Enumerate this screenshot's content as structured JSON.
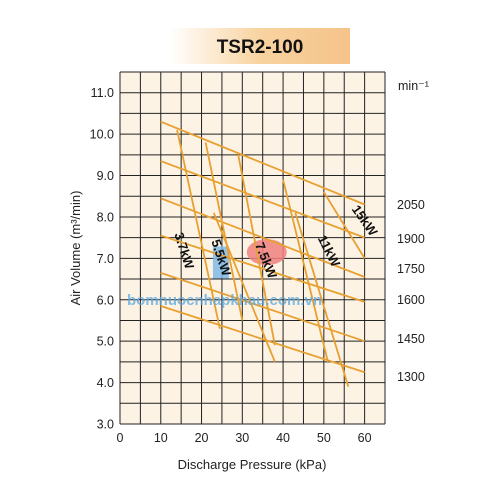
{
  "chart_data": {
    "type": "line",
    "title": "TSR2-100",
    "xlabel": "Discharge Pressure (kPa)",
    "ylabel": "Air Volume (m³/min)",
    "xlim": [
      0,
      65
    ],
    "ylim": [
      3.0,
      11.5
    ],
    "x_ticks": [
      "0",
      "10",
      "20",
      "30",
      "40",
      "50",
      "60"
    ],
    "y_ticks": [
      "3.0",
      "4.0",
      "5.0",
      "6.0",
      "7.0",
      "8.0",
      "9.0",
      "10.0",
      "11.0"
    ],
    "grid": true,
    "rpm_unit": "min⁻¹",
    "speed_lines": [
      {
        "label": "2050",
        "points": [
          [
            10,
            10.3
          ],
          [
            60,
            8.3
          ]
        ]
      },
      {
        "label": "1900",
        "points": [
          [
            10,
            9.35
          ],
          [
            60,
            7.5
          ]
        ]
      },
      {
        "label": "1750",
        "points": [
          [
            10,
            8.45
          ],
          [
            60,
            6.55
          ]
        ]
      },
      {
        "label": "1600",
        "points": [
          [
            10,
            7.55
          ],
          [
            60,
            5.95
          ]
        ]
      },
      {
        "label": "1450",
        "points": [
          [
            10,
            6.65
          ],
          [
            60,
            5.0
          ]
        ]
      },
      {
        "label": "1300",
        "points": [
          [
            10,
            5.85
          ],
          [
            60,
            4.25
          ]
        ]
      }
    ],
    "power_lines": [
      {
        "label": "3.7kW",
        "points": [
          [
            14,
            10.1
          ],
          [
            24.5,
            5.3
          ]
        ]
      },
      {
        "label": "5.5kW",
        "points": [
          [
            21,
            9.8
          ],
          [
            30,
            5.5
          ]
        ]
      },
      {
        "label": "7.5kW",
        "points": [
          [
            29,
            9.5
          ],
          [
            38,
            4.9
          ]
        ]
      },
      {
        "label": "11kW",
        "points": [
          [
            40,
            8.9
          ],
          [
            51,
            4.5
          ]
        ]
      },
      {
        "label": "15kW",
        "points": [
          [
            50,
            8.6
          ],
          [
            60,
            7.0
          ]
        ]
      }
    ],
    "extra_lines": [
      {
        "points": [
          [
            23,
            8.1
          ],
          [
            38,
            4.5
          ]
        ]
      },
      {
        "points": [
          [
            43,
            8.1
          ],
          [
            56,
            3.9
          ]
        ]
      }
    ],
    "highlight_zones": [
      {
        "color": "#f08080",
        "x": 36,
        "y": 7.15
      },
      {
        "color": "#7fb8e6",
        "x": 25,
        "y": 6.9
      }
    ],
    "watermark": "bomnuocnhapkhau.com.vn",
    "colors": {
      "curve": "#e8a030",
      "background": "#fdf3e4",
      "grid": "#222222",
      "title_gradient": "#f7c98b"
    }
  }
}
